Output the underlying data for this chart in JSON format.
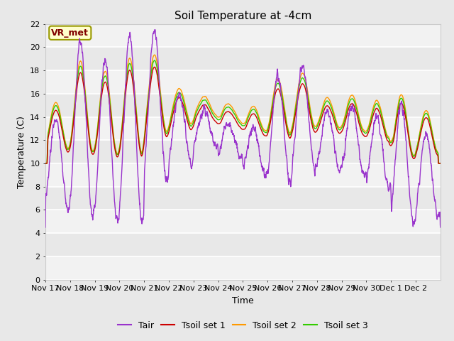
{
  "title": "Soil Temperature at -4cm",
  "xlabel": "Time",
  "ylabel": "Temperature (C)",
  "ylim": [
    0,
    22
  ],
  "annotation": "VR_met",
  "line_colors": {
    "Tair": "#9933cc",
    "Tsoil set 1": "#cc0000",
    "Tsoil set 2": "#ff9900",
    "Tsoil set 3": "#33cc00"
  },
  "x_tick_labels": [
    "Nov 17",
    "Nov 18",
    "Nov 19",
    "Nov 20",
    "Nov 21",
    "Nov 22",
    "Nov 23",
    "Nov 24",
    "Nov 25",
    "Nov 26",
    "Nov 27",
    "Nov 28",
    "Nov 29",
    "Nov 30",
    "Dec 1",
    "Dec 2"
  ],
  "background_color": "#e8e8e8",
  "plot_bg_color": "#e8e8e8",
  "white_band_color": "#f8f8f8",
  "title_fontsize": 11,
  "axis_fontsize": 9,
  "tick_fontsize": 8,
  "legend_fontsize": 9,
  "annotation_fontsize": 9,
  "line_width": 1.0
}
